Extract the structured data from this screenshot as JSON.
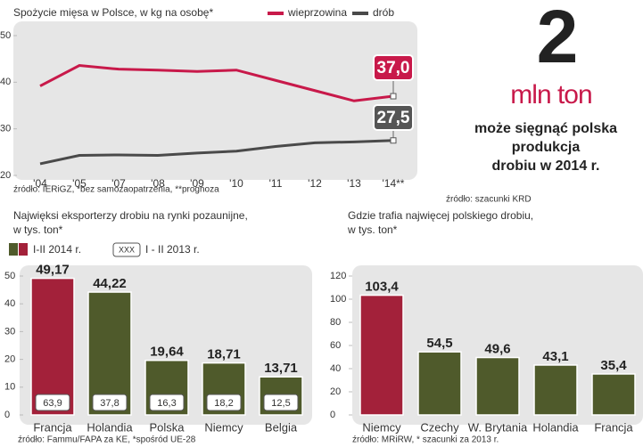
{
  "chart_data": [
    {
      "type": "line",
      "title": "Spożycie mięsa w Polsce, w kg na osobę*",
      "categories": [
        "'04",
        "'05",
        "'07",
        "'08",
        "'09",
        "'10",
        "'11",
        "'12",
        "'13",
        "'14**"
      ],
      "series": [
        {
          "name": "wieprzowina",
          "color": "#c8194a",
          "values": [
            39.2,
            43.6,
            42.8,
            42.6,
            42.3,
            42.6,
            40.4,
            38.2,
            36.0,
            37.0
          ],
          "value_labels": [
            null,
            null,
            null,
            null,
            null,
            null,
            null,
            null,
            null,
            "37,0"
          ]
        },
        {
          "name": "drób",
          "color": "#4a4a4a",
          "values": [
            22.5,
            24.3,
            24.4,
            24.3,
            24.8,
            25.2,
            26.2,
            27.0,
            27.2,
            27.5
          ],
          "value_labels": [
            null,
            null,
            null,
            null,
            null,
            null,
            null,
            null,
            null,
            "27,5"
          ]
        }
      ],
      "ylim": [
        20,
        50
      ],
      "yticks": [
        20,
        30,
        40,
        50
      ],
      "source": "źródło: IERiGZ, *bez samozaopatrzenia, **prognoza"
    },
    {
      "type": "bar",
      "title": [
        "Najwięksi eksporterzy drobiu na rynki pozaunijne,",
        "w tys. ton*"
      ],
      "categories": [
        "Francja",
        "Holandia",
        "Polska",
        "Niemcy",
        "Belgia"
      ],
      "series": [
        {
          "name": "I-II 2014 r.",
          "values": [
            49.17,
            44.22,
            19.64,
            18.71,
            13.71
          ],
          "value_labels": [
            "49,17",
            "44,22",
            "19,64",
            "18,71",
            "13,71"
          ],
          "colors": [
            "#a3213a",
            "#4f5a2b",
            "#4f5a2b",
            "#4f5a2b",
            "#4f5a2b"
          ]
        },
        {
          "name": "I - II 2013 r.",
          "values": [
            63.9,
            37.8,
            16.3,
            18.2,
            12.5
          ],
          "value_labels": [
            "63,9",
            "37,8",
            "16,3",
            "18,2",
            "12,5"
          ]
        }
      ],
      "legend_marker": "XXX",
      "ylim": [
        0,
        50
      ],
      "yticks": [
        0,
        10,
        20,
        30,
        40,
        50
      ],
      "source": "źródło: Fammu/FAPA za KE, *spośród UE-28"
    },
    {
      "type": "bar",
      "title": [
        "Gdzie trafia najwięcej polskiego drobiu,",
        "w tys. ton*"
      ],
      "categories": [
        "Niemcy",
        "Czechy",
        "W. Brytania",
        "Holandia",
        "Francja"
      ],
      "series": [
        {
          "name": null,
          "values": [
            103.4,
            54.5,
            49.6,
            43.1,
            35.4
          ],
          "value_labels": [
            "103,4",
            "54,5",
            "49,6",
            "43,1",
            "35,4"
          ],
          "colors": [
            "#a3213a",
            "#4f5a2b",
            "#4f5a2b",
            "#4f5a2b",
            "#4f5a2b"
          ]
        }
      ],
      "ylim": [
        0,
        120
      ],
      "yticks": [
        0,
        20,
        40,
        60,
        80,
        100,
        120
      ],
      "source": "źródło: MRiRW, * szacunki za 2013 r."
    }
  ],
  "callout": {
    "number": "2",
    "unit": "mln ton",
    "text": [
      "może sięgnąć polska",
      "produkcja",
      "drobiu w 2014 r."
    ],
    "source": "źródło: szacunki KRD"
  }
}
